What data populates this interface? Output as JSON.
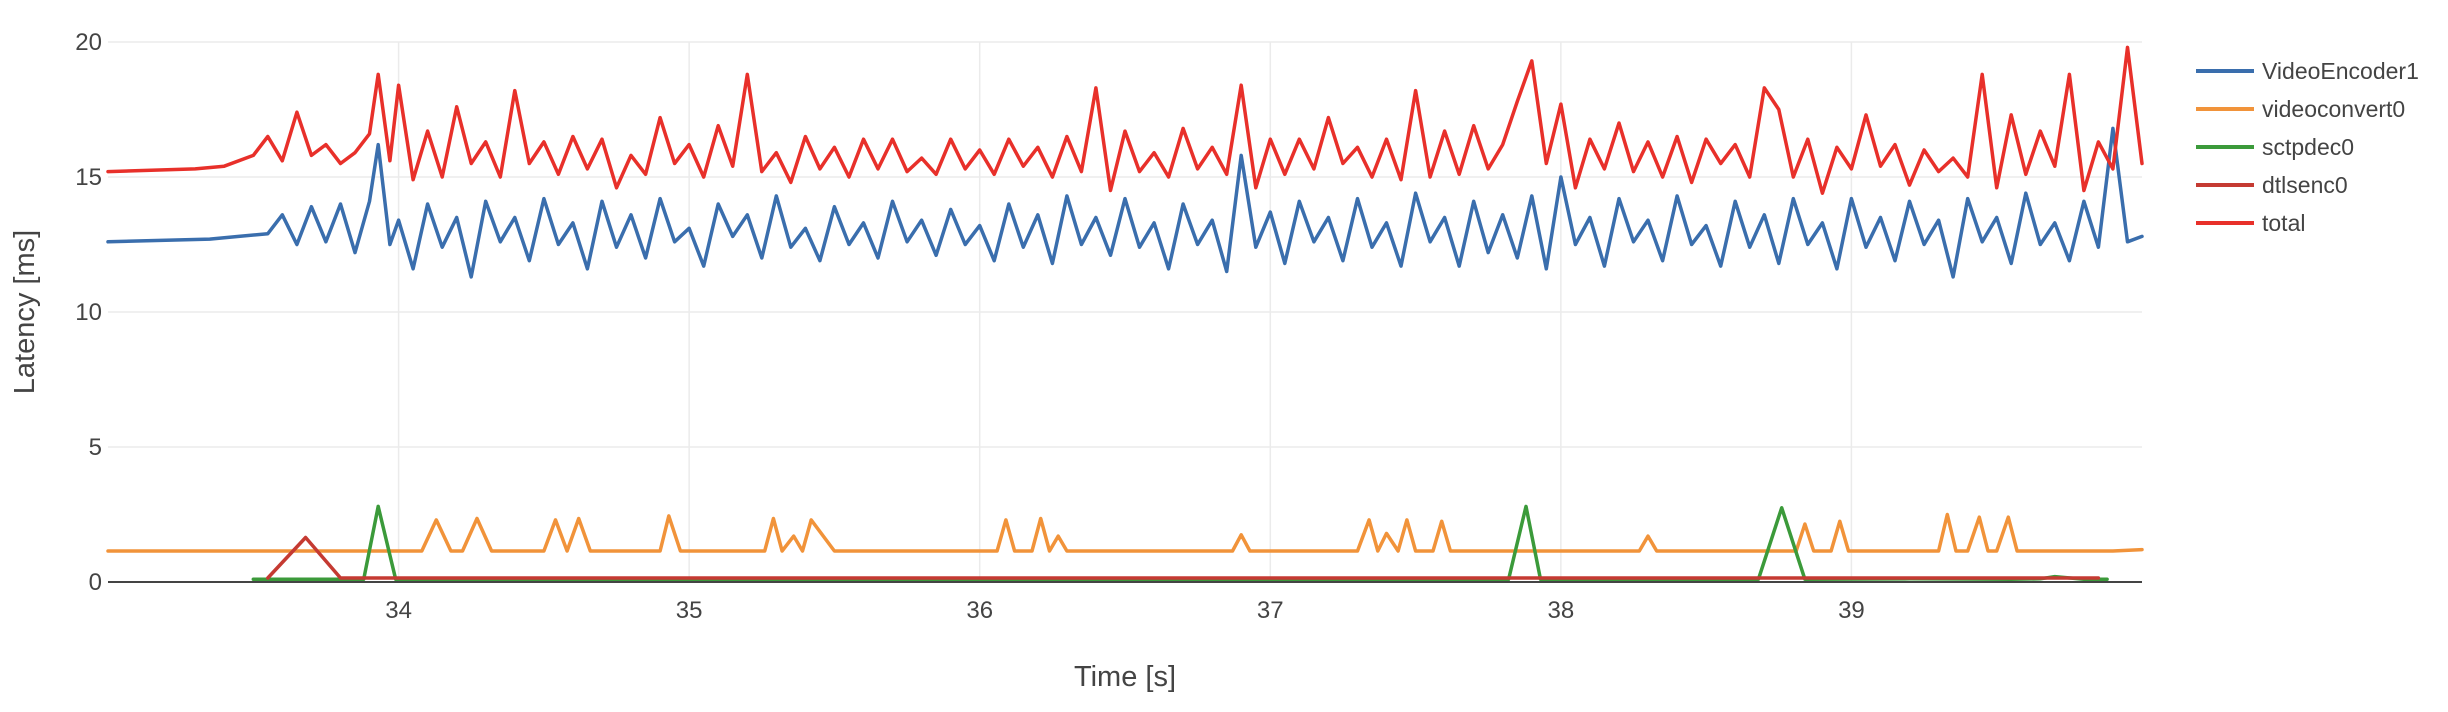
{
  "chart_data": {
    "type": "line",
    "xlabel": "Time [s]",
    "ylabel": "Latency [ms]",
    "xlim": [
      33.0,
      40.0
    ],
    "ylim": [
      0,
      20
    ],
    "x_ticks": [
      34,
      35,
      36,
      37,
      38,
      39
    ],
    "x_tick_labels": [
      "34",
      "35",
      "36",
      "37",
      "38",
      "39"
    ],
    "y_ticks": [
      0,
      5,
      10,
      15,
      20
    ],
    "y_tick_labels": [
      "0",
      "5",
      "10",
      "15",
      "20"
    ],
    "grid": true,
    "legend_position": "right",
    "series": [
      {
        "name": "VideoEncoder1",
        "color": "#3a6ead",
        "x": [
          33.0,
          33.35,
          33.45,
          33.55,
          33.6,
          33.65,
          33.7,
          33.75,
          33.8,
          33.85,
          33.9,
          33.93,
          33.97,
          34.0,
          34.05,
          34.1,
          34.15,
          34.2,
          34.25,
          34.3,
          34.35,
          34.4,
          34.45,
          34.5,
          34.55,
          34.6,
          34.65,
          34.7,
          34.75,
          34.8,
          34.85,
          34.9,
          34.95,
          35.0,
          35.05,
          35.1,
          35.15,
          35.2,
          35.25,
          35.3,
          35.35,
          35.4,
          35.45,
          35.5,
          35.55,
          35.6,
          35.65,
          35.7,
          35.75,
          35.8,
          35.85,
          35.9,
          35.95,
          36.0,
          36.05,
          36.1,
          36.15,
          36.2,
          36.25,
          36.3,
          36.35,
          36.4,
          36.45,
          36.5,
          36.55,
          36.6,
          36.65,
          36.7,
          36.75,
          36.8,
          36.85,
          36.9,
          36.95,
          37.0,
          37.05,
          37.1,
          37.15,
          37.2,
          37.25,
          37.3,
          37.35,
          37.4,
          37.45,
          37.5,
          37.55,
          37.6,
          37.65,
          37.7,
          37.75,
          37.8,
          37.85,
          37.9,
          37.95,
          38.0,
          38.05,
          38.1,
          38.15,
          38.2,
          38.25,
          38.3,
          38.35,
          38.4,
          38.45,
          38.5,
          38.55,
          38.6,
          38.65,
          38.7,
          38.75,
          38.8,
          38.85,
          38.9,
          38.95,
          39.0,
          39.05,
          39.1,
          39.15,
          39.2,
          39.25,
          39.3,
          39.35,
          39.4,
          39.45,
          39.5,
          39.55,
          39.6,
          39.65,
          39.7,
          39.75,
          39.8,
          39.85,
          39.9,
          39.95,
          40.0
        ],
        "values": [
          12.6,
          12.7,
          12.8,
          12.9,
          13.6,
          12.5,
          13.9,
          12.6,
          14.0,
          12.2,
          14.1,
          16.2,
          12.5,
          13.4,
          11.6,
          14.0,
          12.4,
          13.5,
          11.3,
          14.1,
          12.6,
          13.5,
          11.9,
          14.2,
          12.5,
          13.3,
          11.6,
          14.1,
          12.4,
          13.6,
          12.0,
          14.2,
          12.6,
          13.1,
          11.7,
          14.0,
          12.8,
          13.6,
          12.0,
          14.3,
          12.4,
          13.1,
          11.9,
          13.9,
          12.5,
          13.3,
          12.0,
          14.1,
          12.6,
          13.4,
          12.1,
          13.8,
          12.5,
          13.2,
          11.9,
          14.0,
          12.4,
          13.6,
          11.8,
          14.3,
          12.5,
          13.5,
          12.1,
          14.2,
          12.4,
          13.3,
          11.6,
          14.0,
          12.5,
          13.4,
          11.5,
          15.8,
          12.4,
          13.7,
          11.8,
          14.1,
          12.6,
          13.5,
          11.9,
          14.2,
          12.4,
          13.3,
          11.7,
          14.4,
          12.6,
          13.5,
          11.7,
          14.1,
          12.2,
          13.6,
          12.0,
          14.3,
          11.6,
          15.0,
          12.5,
          13.5,
          11.7,
          14.2,
          12.6,
          13.4,
          11.9,
          14.3,
          12.5,
          13.2,
          11.7,
          14.1,
          12.4,
          13.6,
          11.8,
          14.2,
          12.5,
          13.3,
          11.6,
          14.2,
          12.4,
          13.5,
          11.9,
          14.1,
          12.5,
          13.4,
          11.3,
          14.2,
          12.6,
          13.5,
          11.8,
          14.4,
          12.5,
          13.3,
          11.9,
          14.1,
          12.4,
          16.8,
          12.6,
          12.8
        ]
      },
      {
        "name": "videoconvert0",
        "color": "#f1933a",
        "x": [
          33.0,
          33.1,
          33.2,
          33.3,
          33.4,
          33.5,
          33.6,
          33.7,
          33.8,
          33.9,
          33.95,
          34.0,
          34.08,
          34.13,
          34.18,
          34.22,
          34.27,
          34.32,
          34.4,
          34.5,
          34.54,
          34.58,
          34.62,
          34.66,
          34.7,
          34.8,
          34.9,
          34.93,
          34.97,
          35.0,
          35.1,
          35.2,
          35.26,
          35.29,
          35.32,
          35.36,
          35.39,
          35.42,
          35.5,
          35.6,
          35.7,
          35.8,
          35.9,
          36.0,
          36.06,
          36.09,
          36.12,
          36.18,
          36.21,
          36.24,
          36.27,
          36.3,
          36.4,
          36.5,
          36.6,
          36.7,
          36.8,
          36.87,
          36.9,
          36.93,
          37.0,
          37.1,
          37.2,
          37.3,
          37.34,
          37.37,
          37.4,
          37.44,
          37.47,
          37.5,
          37.56,
          37.59,
          37.62,
          37.7,
          37.8,
          37.9,
          38.0,
          38.1,
          38.2,
          38.27,
          38.3,
          38.33,
          38.4,
          38.5,
          38.6,
          38.7,
          38.81,
          38.84,
          38.87,
          38.93,
          38.96,
          38.99,
          39.1,
          39.2,
          39.3,
          39.33,
          39.36,
          39.4,
          39.44,
          39.47,
          39.5,
          39.54,
          39.57,
          39.6,
          39.7,
          39.8,
          39.9,
          40.0
        ],
        "values": [
          1.15,
          1.15,
          1.15,
          1.15,
          1.15,
          1.15,
          1.15,
          1.15,
          1.15,
          1.15,
          1.15,
          1.15,
          1.15,
          2.3,
          1.15,
          1.15,
          2.35,
          1.15,
          1.15,
          1.15,
          2.3,
          1.15,
          2.35,
          1.15,
          1.15,
          1.15,
          1.15,
          2.45,
          1.15,
          1.15,
          1.15,
          1.15,
          1.15,
          2.35,
          1.15,
          1.7,
          1.15,
          2.3,
          1.15,
          1.15,
          1.15,
          1.15,
          1.15,
          1.15,
          1.15,
          2.3,
          1.15,
          1.15,
          2.35,
          1.15,
          1.7,
          1.15,
          1.15,
          1.15,
          1.15,
          1.15,
          1.15,
          1.15,
          1.75,
          1.15,
          1.15,
          1.15,
          1.15,
          1.15,
          2.3,
          1.15,
          1.8,
          1.15,
          2.3,
          1.15,
          1.15,
          2.25,
          1.15,
          1.15,
          1.15,
          1.15,
          1.15,
          1.15,
          1.15,
          1.15,
          1.7,
          1.15,
          1.15,
          1.15,
          1.15,
          1.15,
          1.15,
          2.15,
          1.15,
          1.15,
          2.25,
          1.15,
          1.15,
          1.15,
          1.15,
          2.5,
          1.15,
          1.15,
          2.4,
          1.15,
          1.15,
          2.4,
          1.15,
          1.15,
          1.15,
          1.15,
          1.15,
          1.2
        ]
      },
      {
        "name": "sctpdec0",
        "color": "#3b9a3a",
        "x": [
          33.5,
          33.82,
          33.88,
          33.93,
          33.99,
          34.05,
          37.82,
          37.88,
          37.93,
          37.98,
          38.68,
          38.76,
          38.84,
          39.2,
          39.55,
          39.65,
          39.7,
          39.8,
          39.88
        ],
        "values": [
          0.1,
          0.1,
          0.1,
          2.8,
          0.1,
          0.1,
          0.1,
          2.8,
          0.1,
          0.1,
          0.1,
          2.75,
          0.1,
          0.12,
          0.1,
          0.12,
          0.2,
          0.1,
          0.1
        ]
      },
      {
        "name": "dtlsenc0",
        "color": "#c53a32",
        "x": [
          33.55,
          33.68,
          33.8,
          34.0,
          34.5,
          35.0,
          35.5,
          36.0,
          36.5,
          37.0,
          37.5,
          38.0,
          38.5,
          39.0,
          39.5,
          39.85
        ],
        "values": [
          0.15,
          1.65,
          0.15,
          0.15,
          0.15,
          0.15,
          0.15,
          0.15,
          0.15,
          0.15,
          0.15,
          0.15,
          0.15,
          0.15,
          0.15,
          0.15
        ]
      },
      {
        "name": "total",
        "color": "#e8302a",
        "x": [
          33.0,
          33.3,
          33.4,
          33.5,
          33.55,
          33.6,
          33.65,
          33.7,
          33.75,
          33.8,
          33.85,
          33.9,
          33.93,
          33.97,
          34.0,
          34.05,
          34.1,
          34.15,
          34.2,
          34.25,
          34.3,
          34.35,
          34.4,
          34.45,
          34.5,
          34.55,
          34.6,
          34.65,
          34.7,
          34.75,
          34.8,
          34.85,
          34.9,
          34.95,
          35.0,
          35.05,
          35.1,
          35.15,
          35.2,
          35.25,
          35.3,
          35.35,
          35.4,
          35.45,
          35.5,
          35.55,
          35.6,
          35.65,
          35.7,
          35.75,
          35.8,
          35.85,
          35.9,
          35.95,
          36.0,
          36.05,
          36.1,
          36.15,
          36.2,
          36.25,
          36.3,
          36.35,
          36.4,
          36.45,
          36.5,
          36.55,
          36.6,
          36.65,
          36.7,
          36.75,
          36.8,
          36.85,
          36.9,
          36.95,
          37.0,
          37.05,
          37.1,
          37.15,
          37.2,
          37.25,
          37.3,
          37.35,
          37.4,
          37.45,
          37.5,
          37.55,
          37.6,
          37.65,
          37.7,
          37.75,
          37.8,
          37.85,
          37.9,
          37.95,
          38.0,
          38.05,
          38.1,
          38.15,
          38.2,
          38.25,
          38.3,
          38.35,
          38.4,
          38.45,
          38.5,
          38.55,
          38.6,
          38.65,
          38.7,
          38.75,
          38.8,
          38.85,
          38.9,
          38.95,
          39.0,
          39.05,
          39.1,
          39.15,
          39.2,
          39.25,
          39.3,
          39.35,
          39.4,
          39.45,
          39.5,
          39.55,
          39.6,
          39.65,
          39.7,
          39.75,
          39.8,
          39.85,
          39.9,
          39.95,
          40.0
        ],
        "values": [
          15.2,
          15.3,
          15.4,
          15.8,
          16.5,
          15.6,
          17.4,
          15.8,
          16.2,
          15.5,
          15.9,
          16.6,
          18.8,
          15.6,
          18.4,
          14.9,
          16.7,
          15.0,
          17.6,
          15.5,
          16.3,
          15.0,
          18.2,
          15.5,
          16.3,
          15.1,
          16.5,
          15.3,
          16.4,
          14.6,
          15.8,
          15.1,
          17.2,
          15.5,
          16.2,
          15.0,
          16.9,
          15.4,
          18.8,
          15.2,
          15.9,
          14.8,
          16.5,
          15.3,
          16.1,
          15.0,
          16.4,
          15.3,
          16.4,
          15.2,
          15.7,
          15.1,
          16.4,
          15.3,
          16.0,
          15.1,
          16.4,
          15.4,
          16.1,
          15.0,
          16.5,
          15.2,
          18.3,
          14.5,
          16.7,
          15.2,
          15.9,
          15.0,
          16.8,
          15.3,
          16.1,
          15.1,
          18.4,
          14.6,
          16.4,
          15.1,
          16.4,
          15.3,
          17.2,
          15.5,
          16.1,
          15.0,
          16.4,
          14.9,
          18.2,
          15.0,
          16.7,
          15.1,
          16.9,
          15.3,
          16.2,
          17.8,
          19.3,
          15.5,
          17.7,
          14.6,
          16.4,
          15.3,
          17.0,
          15.2,
          16.3,
          15.0,
          16.5,
          14.8,
          16.4,
          15.5,
          16.2,
          15.0,
          18.3,
          17.5,
          15.0,
          16.4,
          14.4,
          16.1,
          15.3,
          17.3,
          15.4,
          16.2,
          14.7,
          16.0,
          15.2,
          15.7,
          15.0,
          18.8,
          14.6,
          17.3,
          15.1,
          16.7,
          15.4,
          18.8,
          14.5,
          16.3,
          15.3,
          19.8,
          15.5
        ]
      }
    ]
  }
}
